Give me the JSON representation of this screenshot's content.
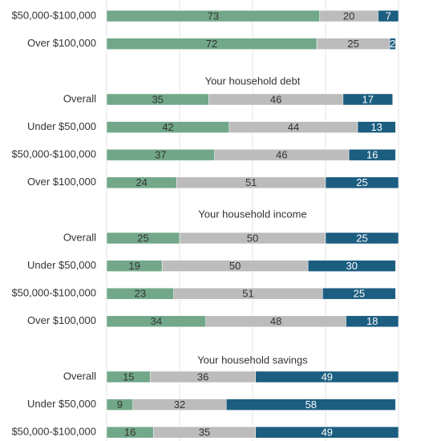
{
  "chart_data": {
    "type": "stacked-bar",
    "orientation": "horizontal",
    "xlim": [
      0,
      100
    ],
    "xticks": [
      0,
      25,
      50,
      75,
      100
    ],
    "grid": true,
    "colors": [
      "#72a889",
      "#bcbcbc",
      "#1c5e80"
    ],
    "sections": [
      {
        "categories": [
          "$50,000-$100,000",
          "Over $100,000"
        ],
        "series": [
          {
            "values": [
              73,
              72
            ]
          },
          {
            "values": [
              20,
              25
            ]
          },
          {
            "values": [
              7,
              2
            ]
          }
        ]
      },
      {
        "title": "Your household debt",
        "categories": [
          "Overall",
          "Under $50,000",
          "$50,000-$100,000",
          "Over $100,000"
        ],
        "series": [
          {
            "values": [
              35,
              42,
              37,
              24
            ]
          },
          {
            "values": [
              46,
              44,
              46,
              51
            ]
          },
          {
            "values": [
              17,
              13,
              16,
              25
            ]
          }
        ]
      },
      {
        "title": "Your household income",
        "categories": [
          "Overall",
          "Under $50,000",
          "$50,000-$100,000",
          "Over $100,000"
        ],
        "series": [
          {
            "values": [
              25,
              19,
              23,
              34
            ]
          },
          {
            "values": [
              50,
              50,
              51,
              48
            ]
          },
          {
            "values": [
              25,
              30,
              25,
              18
            ]
          }
        ]
      },
      {
        "title": "Your household savings",
        "categories": [
          "Overall",
          "Under $50,000",
          "$50,000-$100,000"
        ],
        "series": [
          {
            "values": [
              15,
              9,
              16
            ]
          },
          {
            "values": [
              36,
              32,
              35
            ]
          },
          {
            "values": [
              49,
              58,
              49
            ]
          }
        ]
      }
    ]
  }
}
